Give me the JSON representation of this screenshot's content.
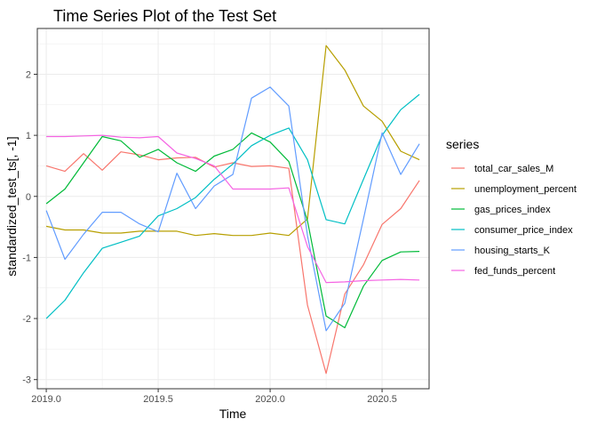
{
  "chart_data": {
    "type": "line",
    "title": "Time Series Plot of the Test Set",
    "xlabel": "Time",
    "ylabel": "standardized_test_ts[, -1]",
    "xlim": [
      2018.96,
      2020.71
    ],
    "ylim": [
      -3.15,
      2.75
    ],
    "x_ticks": [
      2019.0,
      2019.5,
      2020.0,
      2020.5
    ],
    "x_tick_labels": [
      "2019.0",
      "2019.5",
      "2020.0",
      "2020.5"
    ],
    "y_ticks": [
      -3,
      -2,
      -1,
      0,
      1,
      2
    ],
    "y_tick_labels": [
      "-3",
      "-2",
      "-1",
      "0",
      "1",
      "2"
    ],
    "grid": true,
    "legend": {
      "title": "series",
      "position": "right"
    },
    "x": [
      2019.0,
      2019.0833,
      2019.1667,
      2019.25,
      2019.3333,
      2019.4167,
      2019.5,
      2019.5833,
      2019.6667,
      2019.75,
      2019.8333,
      2019.9167,
      2020.0,
      2020.0833,
      2020.1667,
      2020.25,
      2020.3333,
      2020.4167,
      2020.5,
      2020.5833,
      2020.6667
    ],
    "series": [
      {
        "name": "total_car_sales_M",
        "color": "#F8766D",
        "values": [
          0.5,
          0.41,
          0.7,
          0.43,
          0.73,
          0.68,
          0.6,
          0.63,
          0.64,
          0.48,
          0.55,
          0.49,
          0.5,
          0.46,
          -1.78,
          -2.9,
          -1.6,
          -1.12,
          -0.46,
          -0.2,
          0.26
        ]
      },
      {
        "name": "unemployment_percent",
        "color": "#B79F00",
        "values": [
          -0.49,
          -0.55,
          -0.55,
          -0.6,
          -0.6,
          -0.57,
          -0.57,
          -0.57,
          -0.64,
          -0.61,
          -0.64,
          -0.64,
          -0.6,
          -0.64,
          -0.37,
          2.47,
          2.07,
          1.48,
          1.23,
          0.74,
          0.6
        ]
      },
      {
        "name": "gas_prices_index",
        "color": "#00BA38",
        "values": [
          -0.12,
          0.12,
          0.55,
          0.98,
          0.91,
          0.64,
          0.77,
          0.55,
          0.41,
          0.66,
          0.77,
          1.04,
          0.89,
          0.57,
          -0.4,
          -1.96,
          -2.15,
          -1.47,
          -1.05,
          -0.91,
          -0.9
        ]
      },
      {
        "name": "consumer_price_index",
        "color": "#00BFC4",
        "values": [
          -2.0,
          -1.7,
          -1.25,
          -0.85,
          -0.75,
          -0.65,
          -0.32,
          -0.2,
          -0.02,
          0.28,
          0.53,
          0.83,
          1.0,
          1.12,
          0.6,
          -0.38,
          -0.45,
          0.28,
          1.0,
          1.42,
          1.67
        ]
      },
      {
        "name": "housing_starts_K",
        "color": "#619CFF",
        "values": [
          -0.23,
          -1.03,
          -0.62,
          -0.26,
          -0.26,
          -0.45,
          -0.58,
          0.38,
          -0.2,
          0.17,
          0.36,
          1.61,
          1.79,
          1.48,
          -0.64,
          -2.2,
          -1.75,
          -0.37,
          1.04,
          0.36,
          0.86
        ]
      },
      {
        "name": "fed_funds_percent",
        "color": "#F564E3",
        "values": [
          0.98,
          0.98,
          0.99,
          1.0,
          0.97,
          0.96,
          0.98,
          0.71,
          0.62,
          0.5,
          0.12,
          0.12,
          0.12,
          0.14,
          -0.82,
          -1.41,
          -1.4,
          -1.38,
          -1.37,
          -1.36,
          -1.37
        ]
      }
    ]
  }
}
